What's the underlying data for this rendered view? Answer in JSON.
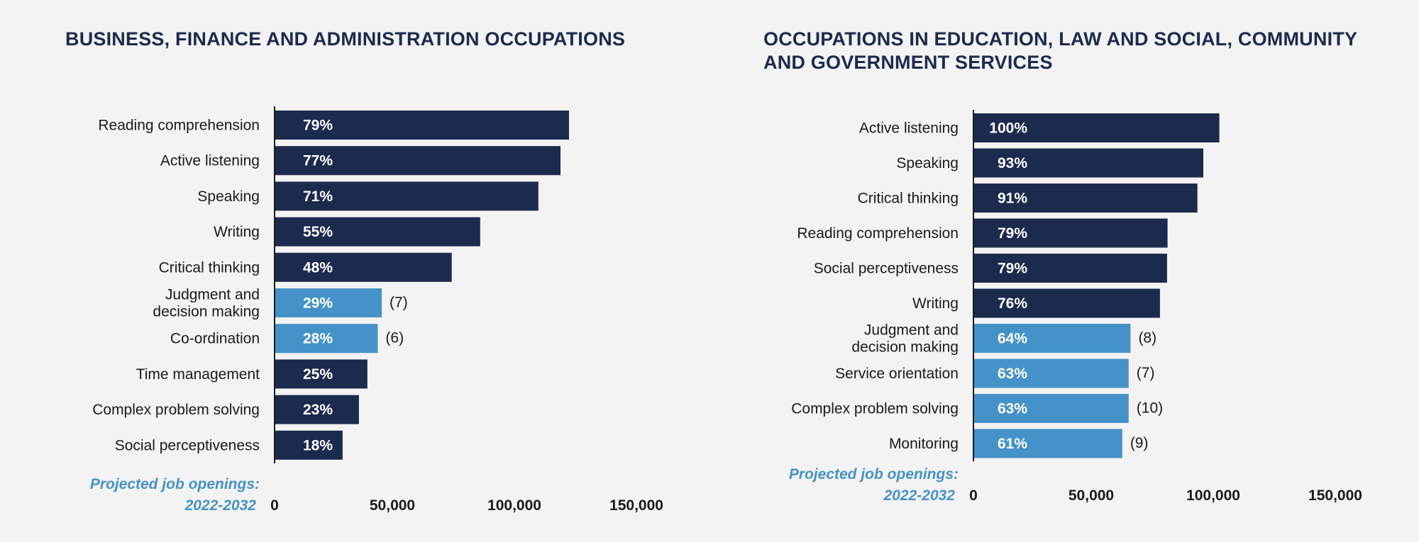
{
  "colors": {
    "top_skill": "#1c2a4e",
    "highlight_skill": "#4592c8",
    "background": "#f3f3f3"
  },
  "chart_data": [
    {
      "type": "bar",
      "orientation": "horizontal",
      "title": "BUSINESS, FINANCE AND ADMINISTRATION OCCUPATIONS",
      "xlabel": "Projected job openings: 2022-2032",
      "xlabel_lines": [
        "Projected job openings:",
        "2022-2032"
      ],
      "xlim": [
        0,
        150000
      ],
      "xticks": [
        0,
        50000,
        100000,
        150000
      ],
      "xtick_labels": [
        "0",
        "50,000",
        "100,000",
        "150,000"
      ],
      "grid": false,
      "bars": [
        {
          "label": "Reading comprehension",
          "value": 125000,
          "pct": "79%",
          "highlight": false
        },
        {
          "label": "Active listening",
          "value": 121400,
          "pct": "77%",
          "highlight": false
        },
        {
          "label": "Speaking",
          "value": 112000,
          "pct": "71%",
          "highlight": false
        },
        {
          "label": "Writing",
          "value": 87300,
          "pct": "55%",
          "highlight": false
        },
        {
          "label": "Critical thinking",
          "value": 75200,
          "pct": "48%",
          "highlight": false
        },
        {
          "label": "Judgment and decision making",
          "lines": [
            "Judgment and",
            "decision making"
          ],
          "value": 45500,
          "pct": "29%",
          "highlight": true,
          "rank": "(7)"
        },
        {
          "label": "Co-ordination",
          "value": 43800,
          "pct": "28%",
          "highlight": true,
          "rank": "(6)"
        },
        {
          "label": "Time management",
          "value": 39400,
          "pct": "25%",
          "highlight": false
        },
        {
          "label": "Complex problem solving",
          "value": 35800,
          "pct": "23%",
          "highlight": false
        },
        {
          "label": "Social perceptiveness",
          "value": 28900,
          "pct": "18%",
          "highlight": false
        }
      ]
    },
    {
      "type": "bar",
      "orientation": "horizontal",
      "title": "OCCUPATIONS IN EDUCATION, LAW AND SOCIAL, COMMUNITY AND GOVERNMENT SERVICES",
      "xlabel": "Projected job openings: 2022-2032",
      "xlabel_lines": [
        "Projected job openings:",
        "2022-2032"
      ],
      "xlim": [
        0,
        150000
      ],
      "xticks": [
        0,
        50000,
        100000,
        150000
      ],
      "xtick_labels": [
        "0",
        "50,000",
        "100,000",
        "150,000"
      ],
      "grid": false,
      "bars": [
        {
          "label": "Active listening",
          "value": 104400,
          "pct": "100%",
          "highlight": false
        },
        {
          "label": "Speaking",
          "value": 97600,
          "pct": "93%",
          "highlight": false
        },
        {
          "label": "Critical thinking",
          "value": 95100,
          "pct": "91%",
          "highlight": false
        },
        {
          "label": "Reading comprehension",
          "value": 82400,
          "pct": "79%",
          "highlight": false
        },
        {
          "label": "Social perceptiveness",
          "value": 82200,
          "pct": "79%",
          "highlight": false
        },
        {
          "label": "Writing",
          "value": 79200,
          "pct": "76%",
          "highlight": false
        },
        {
          "label": "Judgment and decision making",
          "lines": [
            "Judgment and",
            "decision making"
          ],
          "value": 66700,
          "pct": "64%",
          "highlight": true,
          "rank": "(8)"
        },
        {
          "label": "Service orientation",
          "value": 65900,
          "pct": "63%",
          "highlight": true,
          "rank": "(7)"
        },
        {
          "label": "Complex problem solving",
          "value": 65900,
          "pct": "63%",
          "highlight": true,
          "rank": "(10)"
        },
        {
          "label": "Monitoring",
          "value": 63200,
          "pct": "61%",
          "highlight": true,
          "rank": "(9)"
        }
      ]
    }
  ]
}
